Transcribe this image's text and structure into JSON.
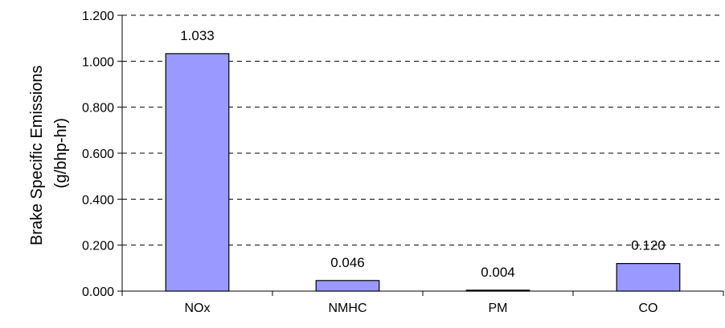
{
  "chart_data": {
    "type": "bar",
    "categories": [
      "NOx",
      "NMHC",
      "PM",
      "CO"
    ],
    "values": [
      1.033,
      0.046,
      0.004,
      0.12
    ],
    "data_labels": [
      "1.033",
      "0.046",
      "0.004",
      "0.120"
    ],
    "title": "",
    "xlabel": "",
    "ylabel_lines": [
      "Brake Specific Emissions",
      "(g/bhp-hr)"
    ],
    "ylim": [
      0,
      1.2
    ],
    "yticks": [
      0,
      0.2,
      0.4,
      0.6,
      0.8,
      1.0,
      1.2
    ],
    "ytick_labels": [
      "0.000",
      "0.200",
      "0.400",
      "0.600",
      "0.800",
      "1.000",
      "1.200"
    ],
    "grid": true,
    "legend": "none",
    "colors": {
      "bar_fill": "#9999ff",
      "bar_stroke": "#000000",
      "grid": "#000000",
      "axis": "#000000"
    }
  }
}
